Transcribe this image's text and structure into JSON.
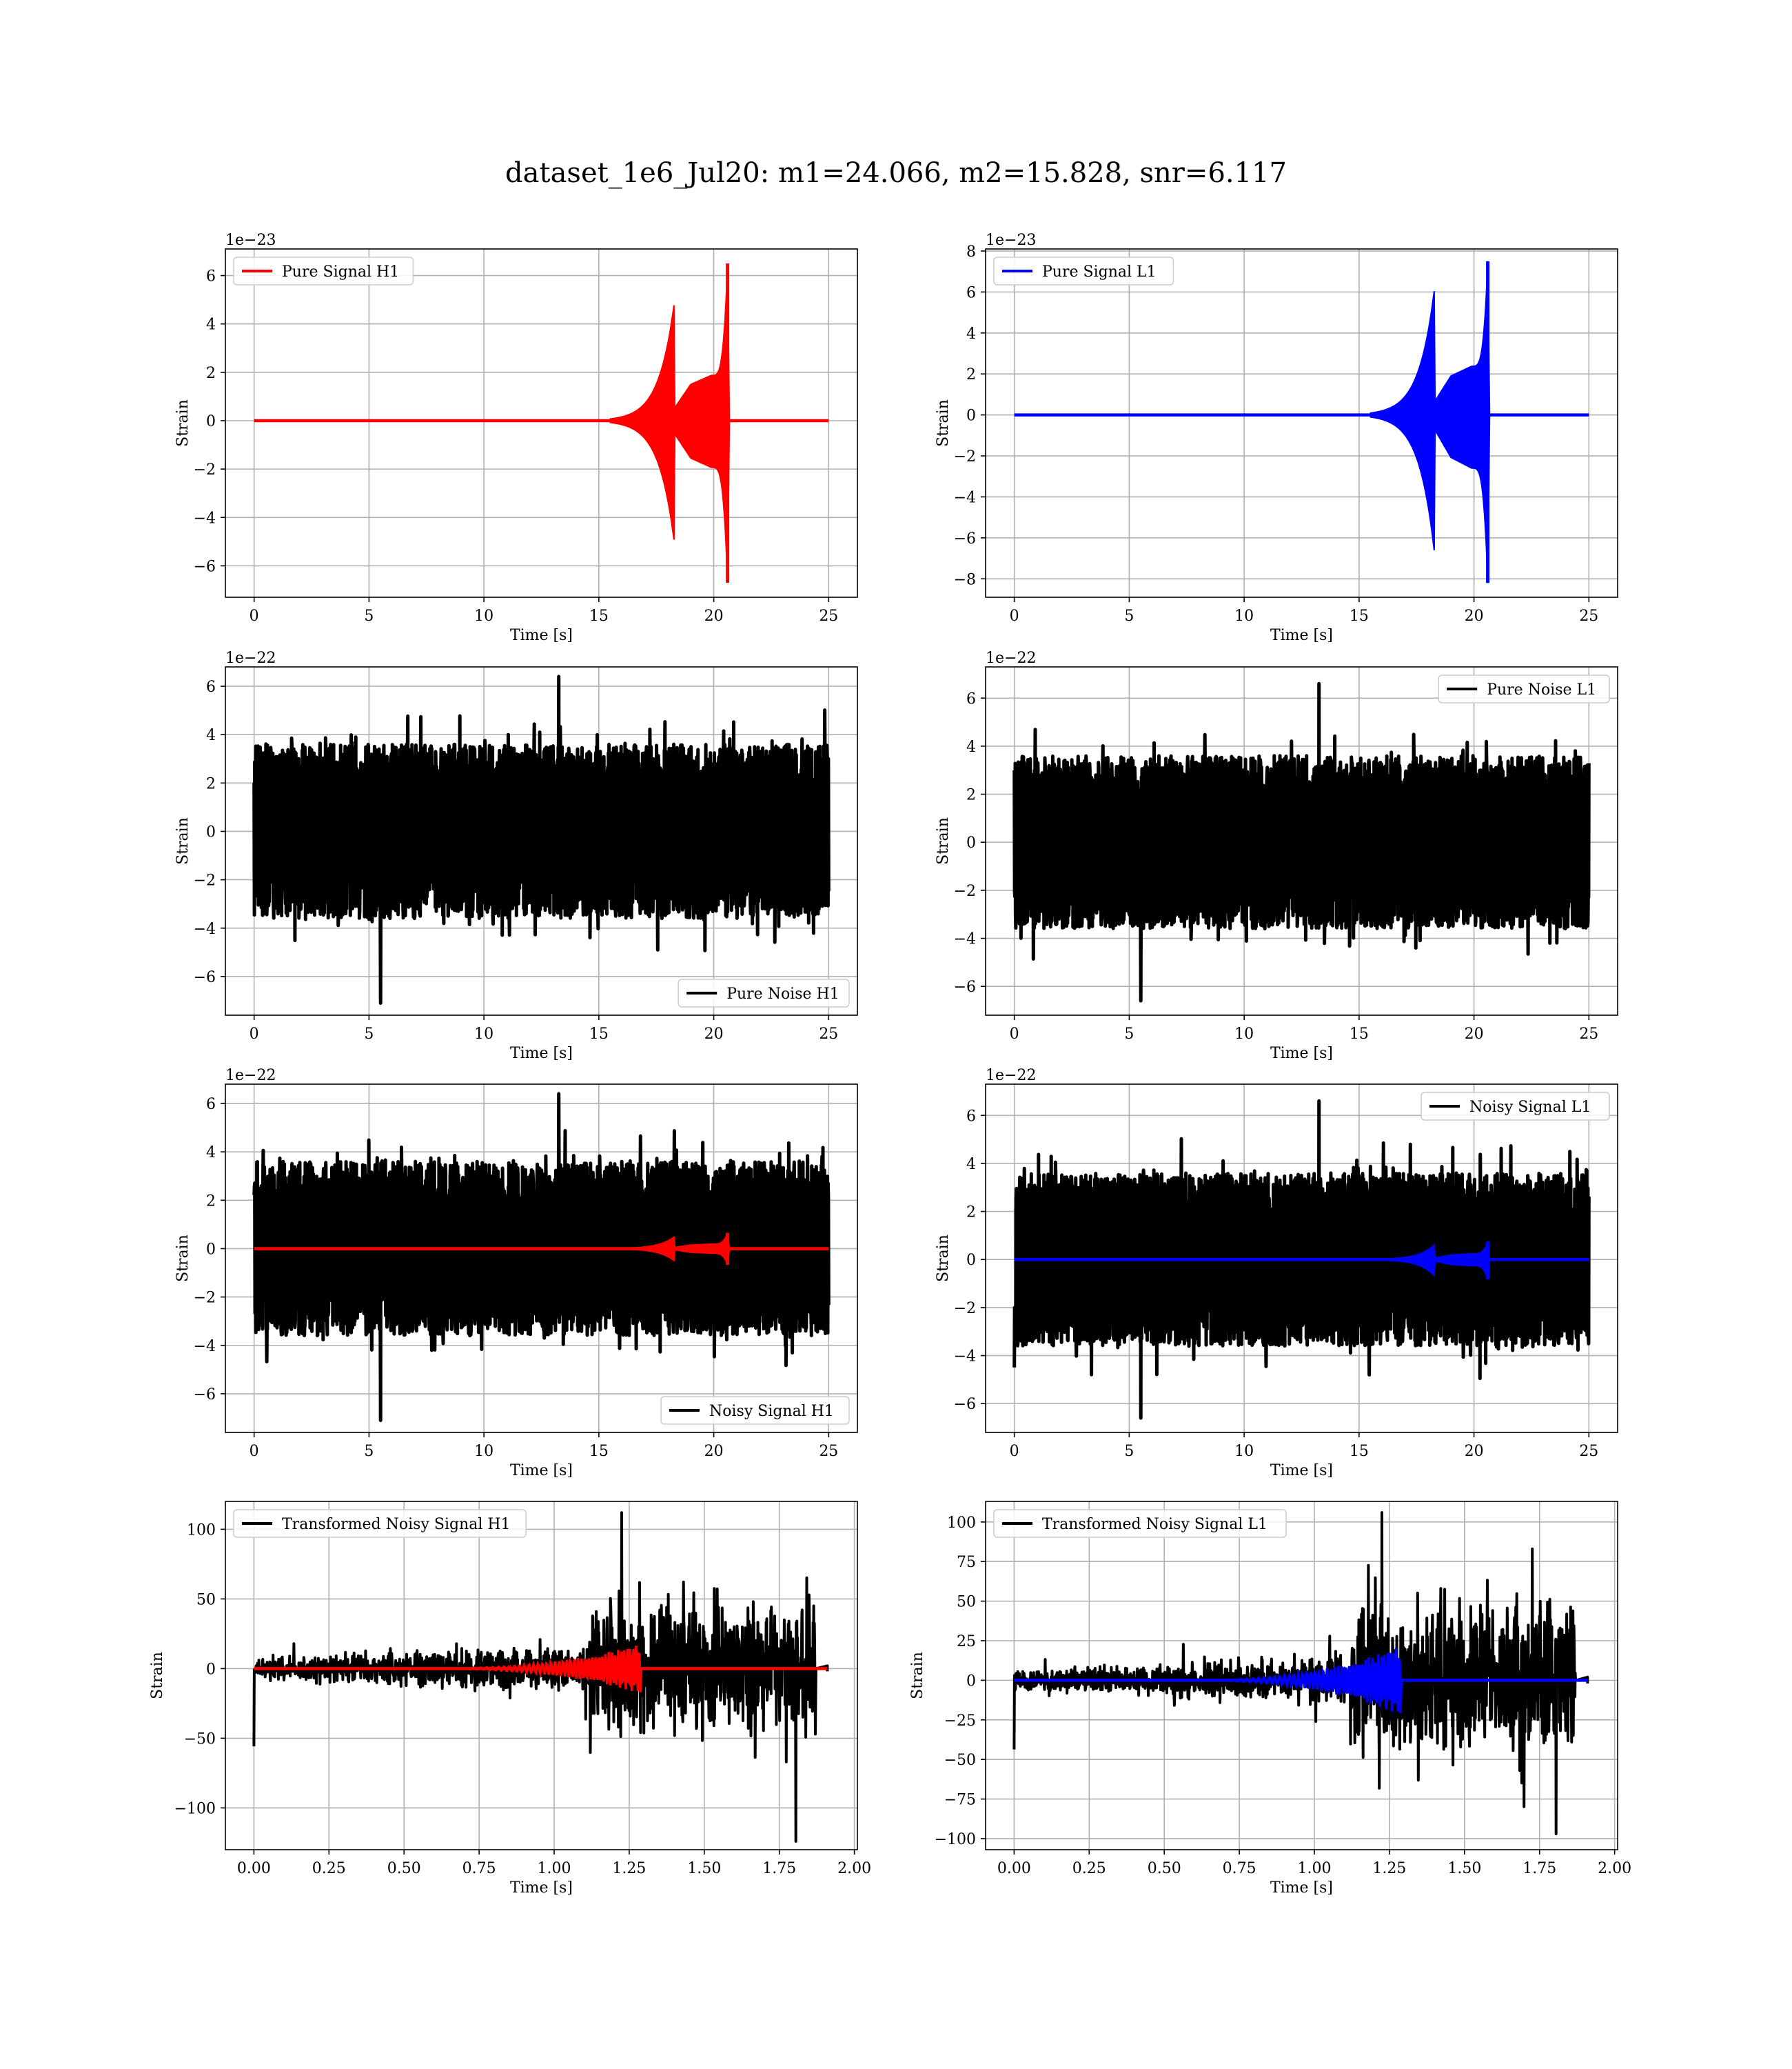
{
  "figure": {
    "suptitle": "dataset_1e6_Jul20: m1=24.066, m2=15.828, snr=6.117",
    "colors": {
      "h1_signal": "#ff0000",
      "l1_signal": "#0000ff",
      "noise": "#000000",
      "grid": "#b0b0b0"
    }
  },
  "chart_data": [
    {
      "id": "pure-signal-h1",
      "type": "line",
      "xlabel": "Time [s]",
      "ylabel": "Strain",
      "offset_text": "1e−23",
      "xlim": [
        -1.25,
        26.25
      ],
      "ylim": [
        -7.3,
        7.1
      ],
      "xticks": [
        0,
        5,
        10,
        15,
        20,
        25
      ],
      "yticks": [
        -6,
        -4,
        -2,
        0,
        2,
        4,
        6
      ],
      "grid": true,
      "legend_position": "upper left",
      "series": [
        {
          "name": "Pure Signal H1",
          "color": "#ff0000",
          "kind": "chirp",
          "t_start": 0,
          "t_end": 25,
          "t_merger": 20.6,
          "plateau": 1.5,
          "peak_pos": 6.5,
          "peak_neg": -6.7
        }
      ]
    },
    {
      "id": "pure-signal-l1",
      "type": "line",
      "xlabel": "Time [s]",
      "ylabel": "Strain",
      "offset_text": "1e−23",
      "xlim": [
        -1.25,
        26.25
      ],
      "ylim": [
        -8.9,
        8.1
      ],
      "xticks": [
        0,
        5,
        10,
        15,
        20,
        25
      ],
      "yticks": [
        -8,
        -6,
        -4,
        -2,
        0,
        2,
        4,
        6,
        8
      ],
      "grid": true,
      "legend_position": "upper left",
      "series": [
        {
          "name": "Pure Signal L1",
          "color": "#0000ff",
          "kind": "chirp",
          "t_start": 0,
          "t_end": 25,
          "t_merger": 20.6,
          "plateau": 1.9,
          "peak_pos": 7.5,
          "peak_neg": -8.2
        }
      ]
    },
    {
      "id": "pure-noise-h1",
      "type": "line",
      "xlabel": "Time [s]",
      "ylabel": "Strain",
      "offset_text": "1e−22",
      "xlim": [
        -1.25,
        26.25
      ],
      "ylim": [
        -7.6,
        6.8
      ],
      "xticks": [
        0,
        5,
        10,
        15,
        20,
        25
      ],
      "yticks": [
        -6,
        -4,
        -2,
        0,
        2,
        4,
        6
      ],
      "grid": true,
      "legend_position": "lower right",
      "series": [
        {
          "name": "Pure Noise H1",
          "color": "#000000",
          "kind": "noise",
          "t_start": 0,
          "t_end": 25,
          "band": 3.6,
          "max": 6.4,
          "min": -7.1
        }
      ]
    },
    {
      "id": "pure-noise-l1",
      "type": "line",
      "xlabel": "Time [s]",
      "ylabel": "Strain",
      "offset_text": "1e−22",
      "xlim": [
        -1.25,
        26.25
      ],
      "ylim": [
        -7.2,
        7.3
      ],
      "xticks": [
        0,
        5,
        10,
        15,
        20,
        25
      ],
      "yticks": [
        -6,
        -4,
        -2,
        0,
        2,
        4,
        6
      ],
      "grid": true,
      "legend_position": "upper right",
      "series": [
        {
          "name": "Pure Noise L1",
          "color": "#000000",
          "kind": "noise",
          "t_start": 0,
          "t_end": 25,
          "band": 3.6,
          "max": 6.6,
          "min": -6.6
        }
      ]
    },
    {
      "id": "noisy-signal-h1",
      "type": "line",
      "xlabel": "Time [s]",
      "ylabel": "Strain",
      "offset_text": "1e−22",
      "xlim": [
        -1.25,
        26.25
      ],
      "ylim": [
        -7.6,
        6.8
      ],
      "xticks": [
        0,
        5,
        10,
        15,
        20,
        25
      ],
      "yticks": [
        -6,
        -4,
        -2,
        0,
        2,
        4,
        6
      ],
      "grid": true,
      "legend_position": "lower right",
      "series": [
        {
          "name": "Noisy Signal H1",
          "color": "#000000",
          "kind": "noise",
          "t_start": 0,
          "t_end": 25,
          "band": 3.6,
          "max": 6.4,
          "min": -7.1
        },
        {
          "name": "",
          "color": "#ff0000",
          "kind": "chirp",
          "t_start": 0,
          "t_end": 25,
          "t_merger": 20.6,
          "plateau": 0.15,
          "peak_pos": 0.65,
          "peak_neg": -0.67
        }
      ]
    },
    {
      "id": "noisy-signal-l1",
      "type": "line",
      "xlabel": "Time [s]",
      "ylabel": "Strain",
      "offset_text": "1e−22",
      "xlim": [
        -1.25,
        26.25
      ],
      "ylim": [
        -7.2,
        7.3
      ],
      "xticks": [
        0,
        5,
        10,
        15,
        20,
        25
      ],
      "yticks": [
        -6,
        -4,
        -2,
        0,
        2,
        4,
        6
      ],
      "grid": true,
      "legend_position": "upper right",
      "series": [
        {
          "name": "Noisy Signal L1",
          "color": "#000000",
          "kind": "noise",
          "t_start": 0,
          "t_end": 25,
          "band": 3.6,
          "max": 6.6,
          "min": -6.6
        },
        {
          "name": "",
          "color": "#0000ff",
          "kind": "chirp",
          "t_start": 0,
          "t_end": 25,
          "t_merger": 20.6,
          "plateau": 0.19,
          "peak_pos": 0.75,
          "peak_neg": -0.82
        }
      ]
    },
    {
      "id": "transformed-noisy-signal-h1",
      "type": "line",
      "xlabel": "Time [s]",
      "ylabel": "Strain",
      "offset_text": "",
      "xlim": [
        -0.095,
        2.01
      ],
      "ylim": [
        -130,
        120
      ],
      "xticks": [
        0.0,
        0.25,
        0.5,
        0.75,
        1.0,
        1.25,
        1.5,
        1.75,
        2.0
      ],
      "xtick_labels": [
        "0.00",
        "0.25",
        "0.50",
        "0.75",
        "1.00",
        "1.25",
        "1.50",
        "1.75",
        "2.00"
      ],
      "yticks": [
        -100,
        -50,
        0,
        50,
        100
      ],
      "grid": true,
      "legend_position": "upper left",
      "series": [
        {
          "name": "Transformed Noisy Signal H1",
          "color": "#000000",
          "kind": "wnoise",
          "t_start": 0,
          "t_end": 1.91,
          "t_cut": 1.87,
          "env0": 7,
          "env1": 17,
          "t_jump": 1.12,
          "env2": 50,
          "max": 112,
          "min": -124
        },
        {
          "name": "",
          "color": "#ff0000",
          "kind": "wchirp",
          "t_start": 0,
          "t_end": 1.91,
          "t_merger": 1.29,
          "peak": 18
        }
      ]
    },
    {
      "id": "transformed-noisy-signal-l1",
      "type": "line",
      "xlabel": "Time [s]",
      "ylabel": "Strain",
      "offset_text": "",
      "xlim": [
        -0.095,
        2.01
      ],
      "ylim": [
        -107,
        113
      ],
      "xticks": [
        0.0,
        0.25,
        0.5,
        0.75,
        1.0,
        1.25,
        1.5,
        1.75,
        2.0
      ],
      "xtick_labels": [
        "0.00",
        "0.25",
        "0.50",
        "0.75",
        "1.00",
        "1.25",
        "1.50",
        "1.75",
        "2.00"
      ],
      "yticks": [
        -100,
        -75,
        -50,
        -25,
        0,
        25,
        50,
        75,
        100
      ],
      "grid": true,
      "legend_position": "upper left",
      "series": [
        {
          "name": "Transformed Noisy Signal L1",
          "color": "#000000",
          "kind": "wnoise",
          "t_start": 0,
          "t_end": 1.91,
          "t_cut": 1.87,
          "env0": 6,
          "env1": 14,
          "t_jump": 1.12,
          "env2": 48,
          "max": 106,
          "min": -97
        },
        {
          "name": "",
          "color": "#0000ff",
          "kind": "wchirp",
          "t_start": 0,
          "t_end": 1.91,
          "t_merger": 1.29,
          "peak": 22
        }
      ]
    }
  ]
}
